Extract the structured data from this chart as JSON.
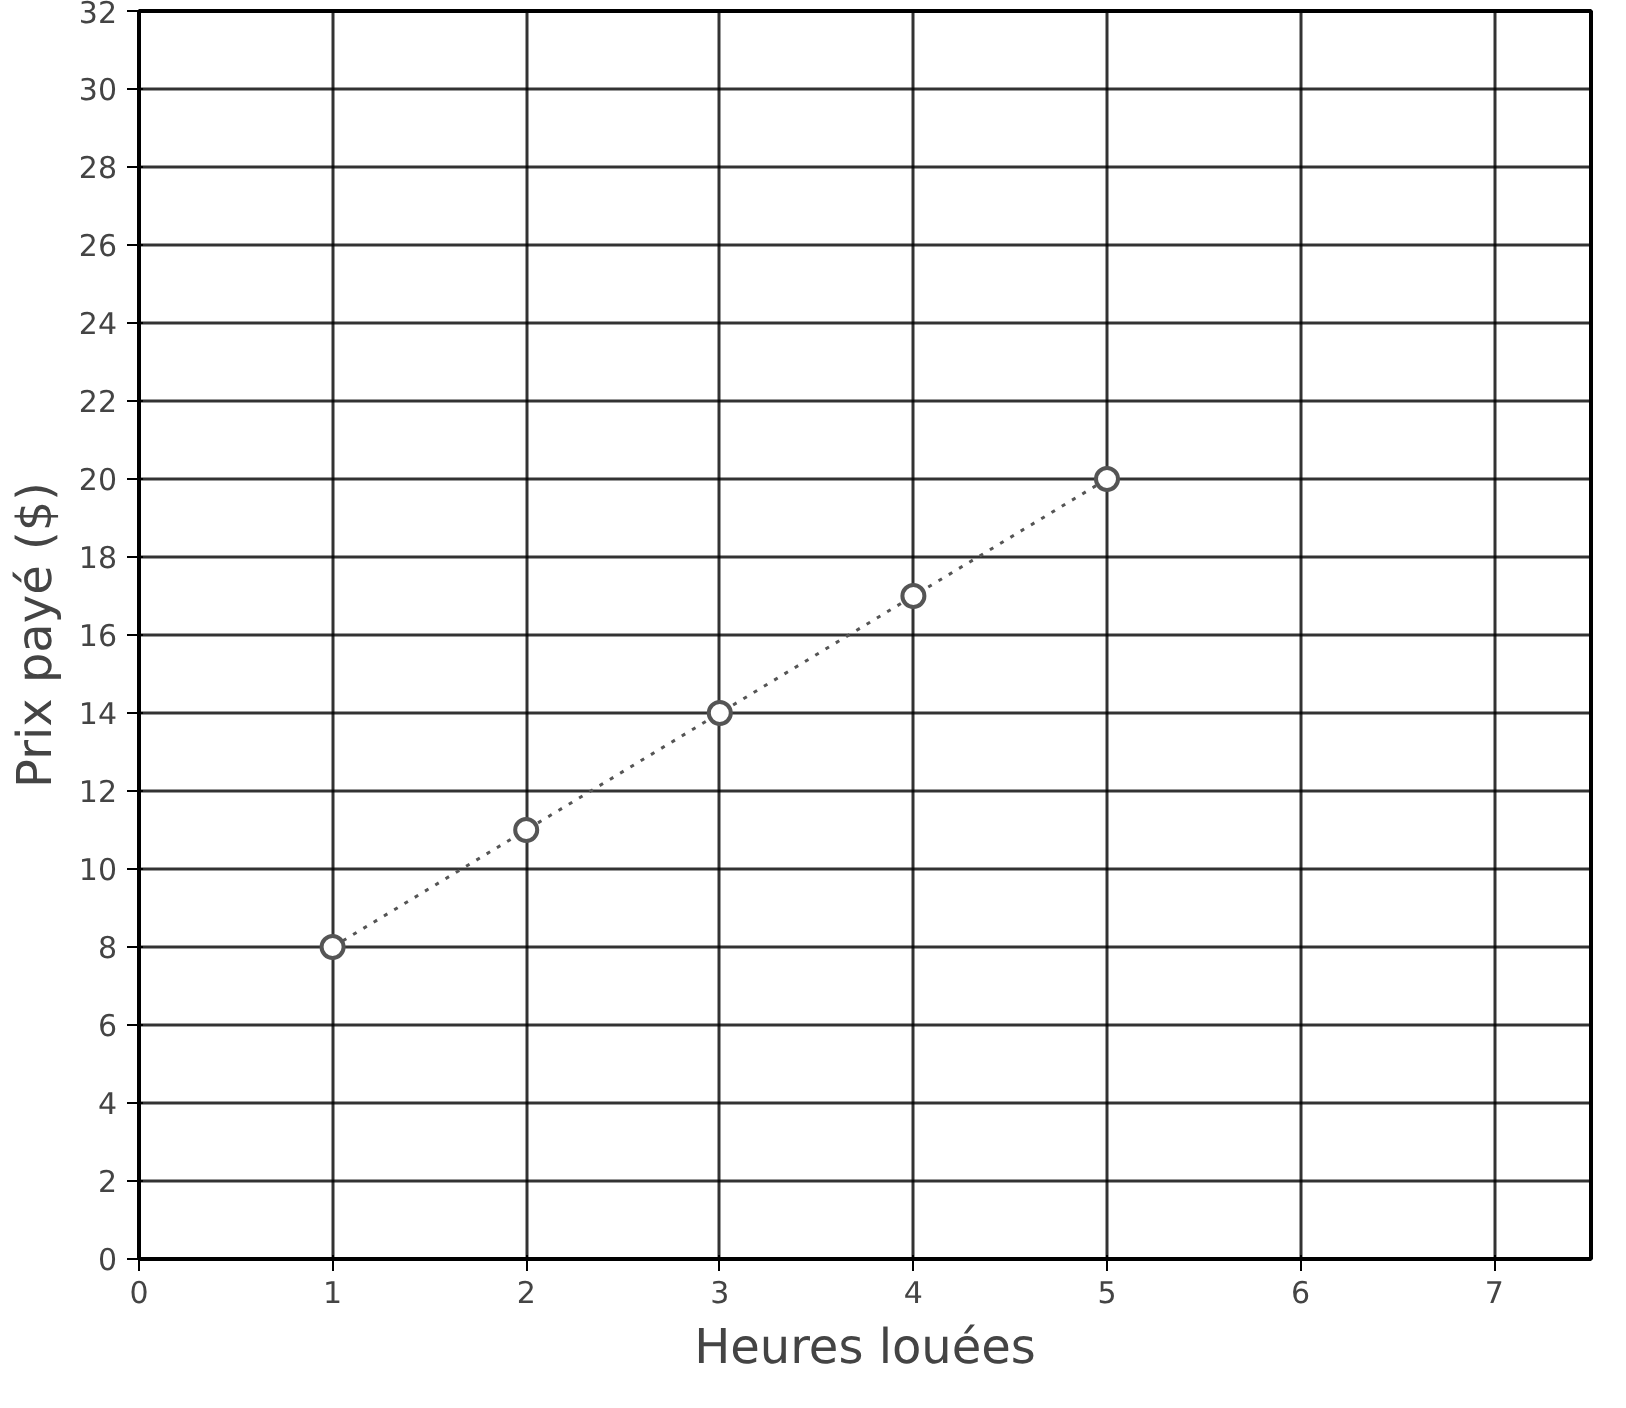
{
  "chart_data": {
    "type": "line",
    "xlabel": "Heures louées",
    "ylabel": "Prix payé ($)",
    "x": [
      1,
      2,
      3,
      4,
      5
    ],
    "series": [
      {
        "color": "#555555",
        "values": [
          8,
          11,
          14,
          17,
          20
        ]
      }
    ],
    "marker": "circle",
    "line_style": "dotted",
    "grid": true,
    "xlim": [
      0,
      7.5
    ],
    "xticks": [
      0,
      1,
      2,
      3,
      4,
      5,
      6,
      7
    ],
    "ylim": [
      0,
      32
    ],
    "yticks": [
      0,
      2,
      4,
      6,
      8,
      10,
      12,
      14,
      16,
      18,
      20,
      22,
      24,
      26,
      28,
      30,
      32
    ]
  }
}
